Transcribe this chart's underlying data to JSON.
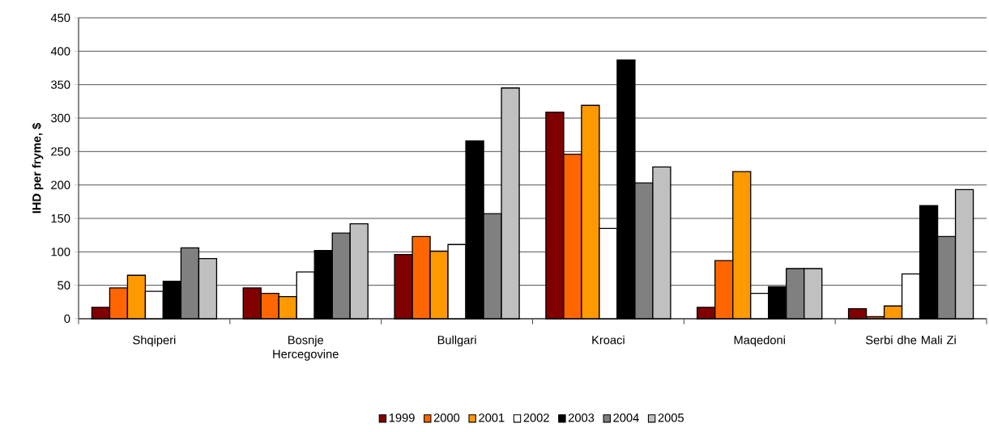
{
  "chart_data": {
    "type": "bar",
    "ylabel": "IHD per fryme, $",
    "categories": [
      "Shqiperi",
      "Bosnje Hercegovine",
      "Bullgari",
      "Kroaci",
      "Maqedoni",
      "Serbi dhe Mali Zi"
    ],
    "series": [
      {
        "name": "1999",
        "color": "#800000",
        "values": [
          17,
          46,
          96,
          309,
          17,
          15
        ]
      },
      {
        "name": "2000",
        "color": "#ff6600",
        "values": [
          46,
          38,
          123,
          246,
          87,
          3
        ]
      },
      {
        "name": "2001",
        "color": "#ff9900",
        "values": [
          65,
          33,
          101,
          319,
          220,
          19
        ]
      },
      {
        "name": "2002",
        "color": "#ffffff",
        "values": [
          41,
          70,
          111,
          135,
          38,
          67
        ]
      },
      {
        "name": "2003",
        "color": "#000000",
        "values": [
          56,
          102,
          266,
          387,
          48,
          169
        ]
      },
      {
        "name": "2004",
        "color": "#808080",
        "values": [
          106,
          128,
          157,
          203,
          75,
          123
        ]
      },
      {
        "name": "2005",
        "color": "#c0c0c0",
        "values": [
          90,
          142,
          345,
          227,
          75,
          193
        ]
      }
    ],
    "ylim": [
      0,
      450
    ],
    "yticks": [
      0,
      50,
      100,
      150,
      200,
      250,
      300,
      350,
      400,
      450
    ],
    "grid": "y",
    "legend": "bottom"
  }
}
